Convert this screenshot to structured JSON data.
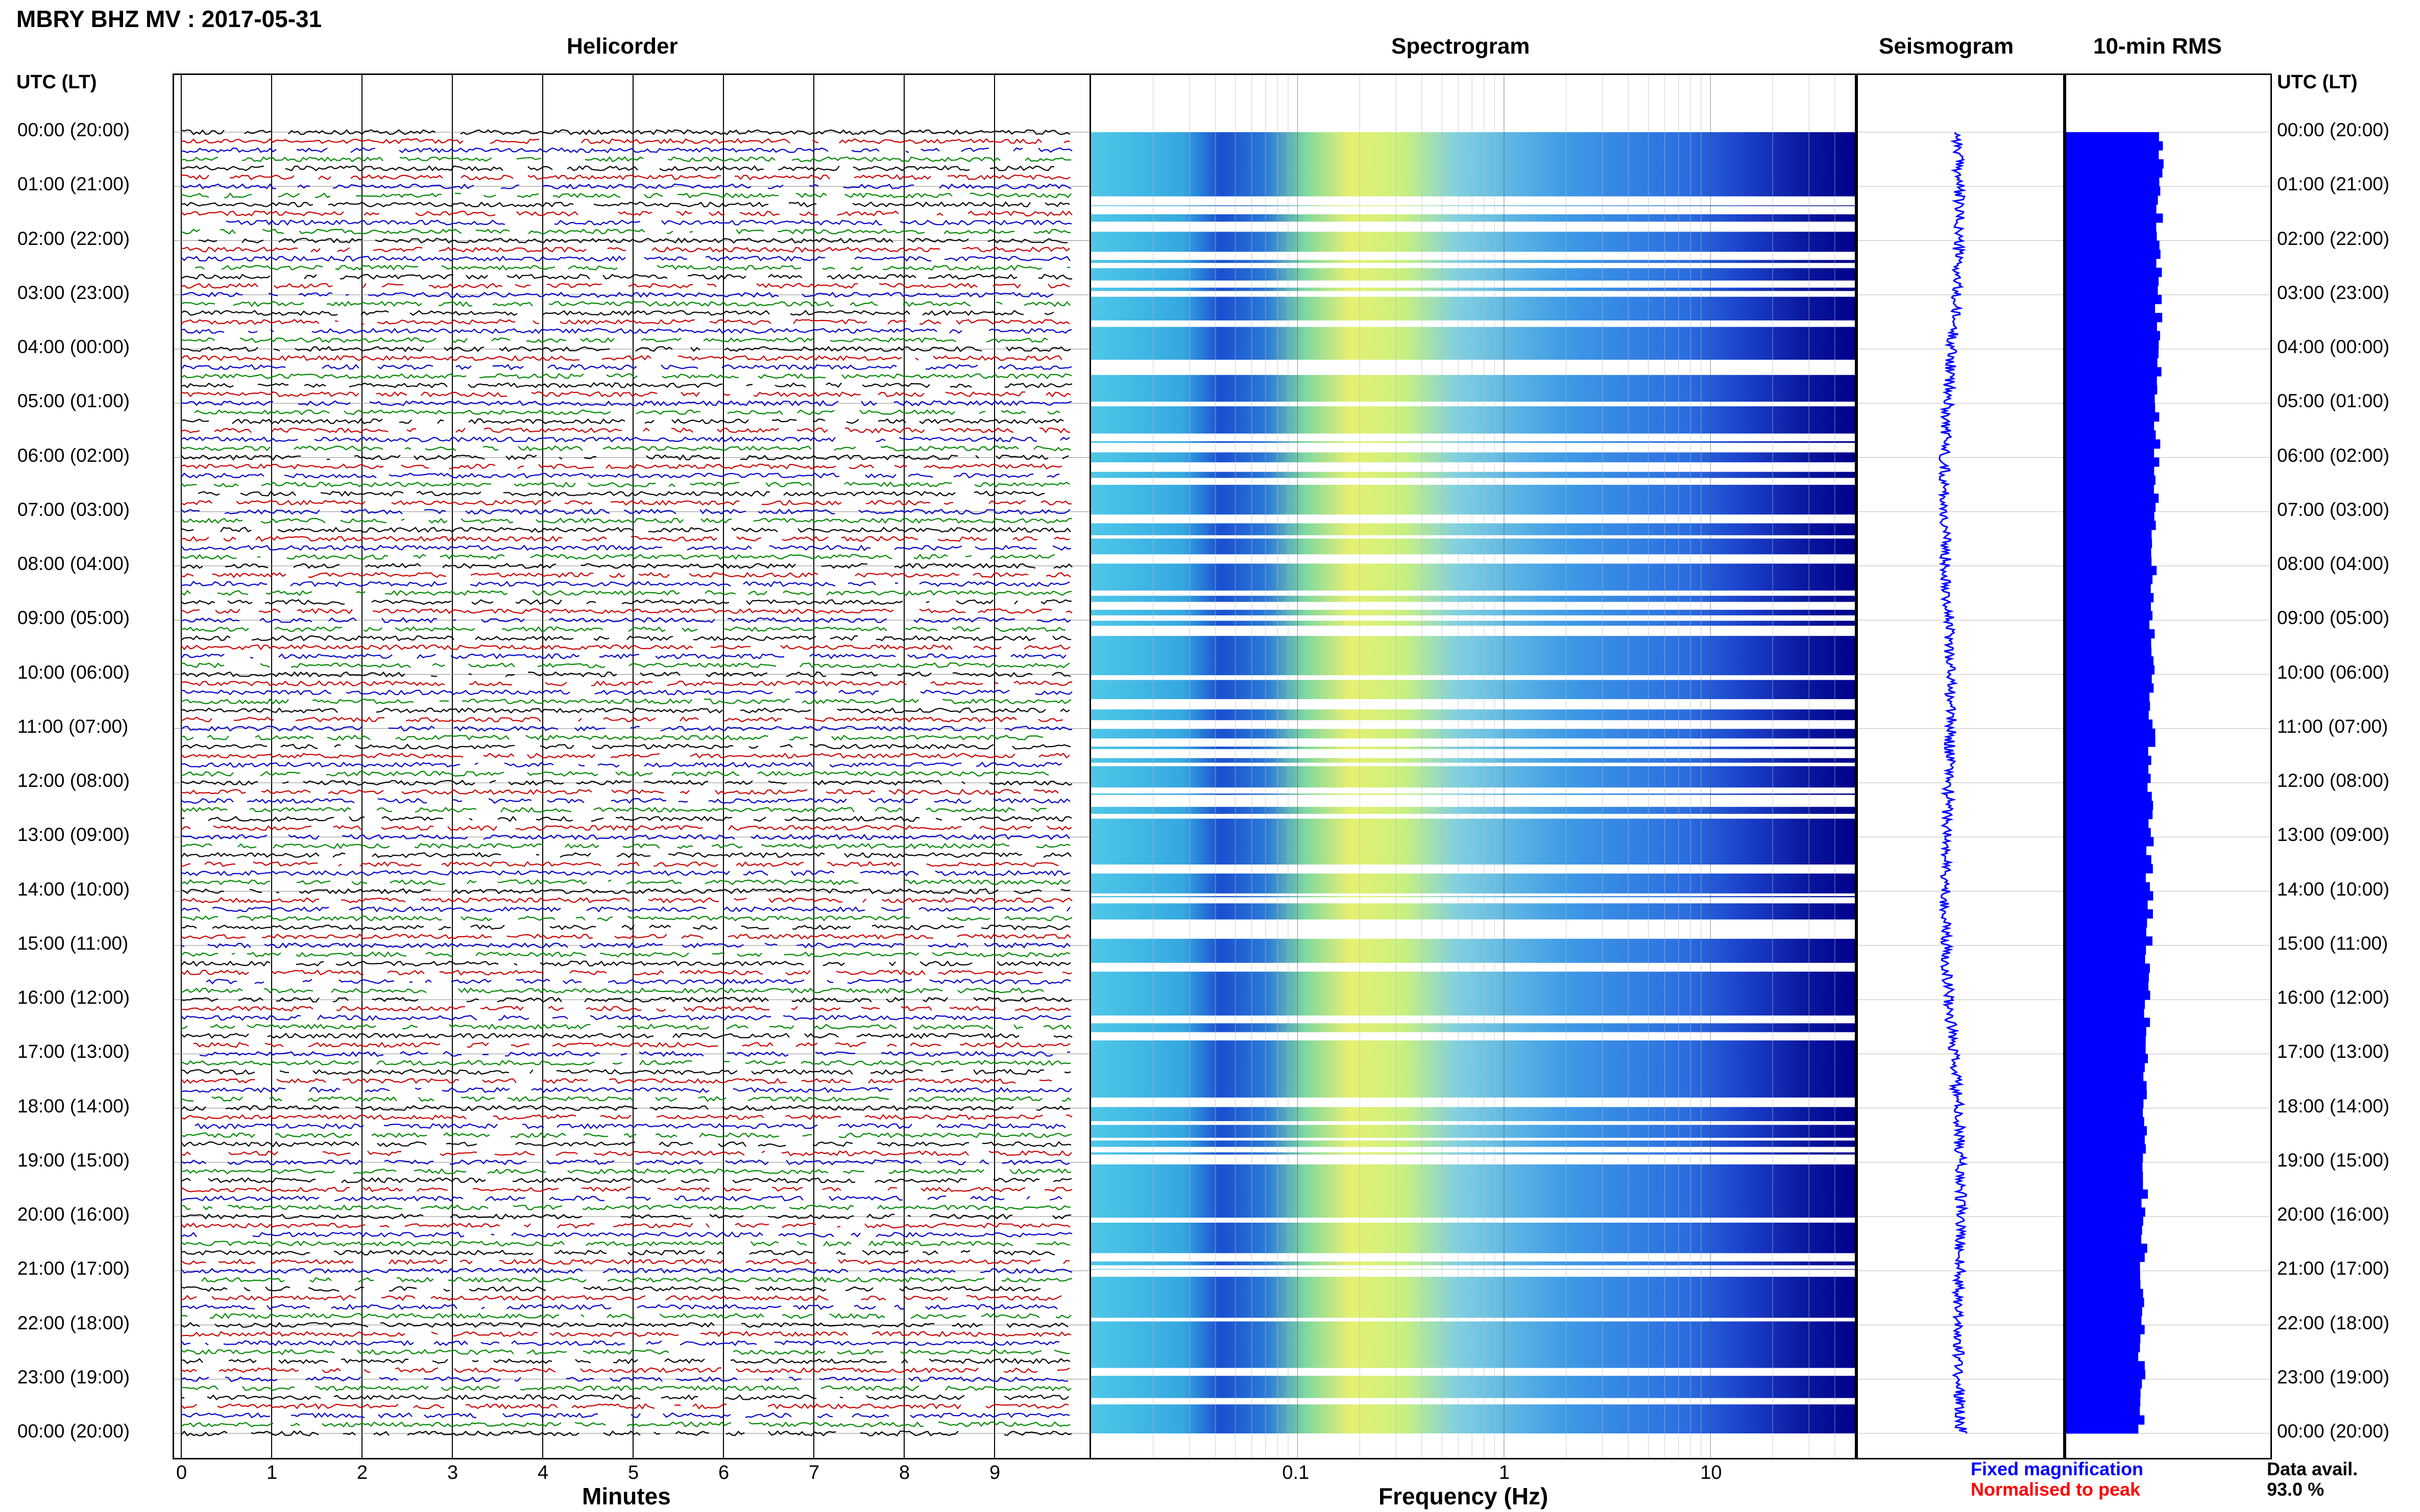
{
  "title": "MBRY BHZ MV : 2017-05-31",
  "panels": {
    "helicorder": "Helicorder",
    "spectrogram": "Spectrogram",
    "seismogram": "Seismogram",
    "rms": "10-min RMS"
  },
  "left_axis_header": "UTC (LT)",
  "right_axis_header": "UTC (LT)",
  "time_labels": [
    "00:00 (20:00)",
    "01:00 (21:00)",
    "02:00 (22:00)",
    "03:00 (23:00)",
    "04:00 (00:00)",
    "05:00 (01:00)",
    "06:00 (02:00)",
    "07:00 (03:00)",
    "08:00 (04:00)",
    "09:00 (05:00)",
    "10:00 (06:00)",
    "11:00 (07:00)",
    "12:00 (08:00)",
    "13:00 (09:00)",
    "14:00 (10:00)",
    "15:00 (11:00)",
    "16:00 (12:00)",
    "17:00 (13:00)",
    "18:00 (14:00)",
    "19:00 (15:00)",
    "20:00 (16:00)",
    "21:00 (17:00)",
    "22:00 (18:00)",
    "23:00 (19:00)",
    "00:00 (20:00)"
  ],
  "helicorder_axis": {
    "title": "Minutes",
    "ticks": [
      "0",
      "1",
      "2",
      "3",
      "4",
      "5",
      "6",
      "7",
      "8",
      "9"
    ],
    "trace_colors": [
      "#000000",
      "#cc0000",
      "#0000cc",
      "#008800"
    ]
  },
  "spectrogram_axis": {
    "title": "Frequency (Hz)",
    "ticks": [
      "0.1",
      "1",
      "10"
    ],
    "scale": "log",
    "range_hz": [
      0.01,
      50
    ]
  },
  "legend": {
    "fixed": "Fixed magnification",
    "fixed_color": "#0000ff",
    "normalised": "Normalised to peak",
    "normalised_color": "#ff0000"
  },
  "data_availability": {
    "label": "Data avail.",
    "value": "93.0 %"
  },
  "colors": {
    "spectro_low": "#00008b",
    "spectro_mid": "#00c0e0",
    "spectro_high": "#ffff40",
    "seismogram": "#0000ff",
    "rms": "#0000ff"
  }
}
